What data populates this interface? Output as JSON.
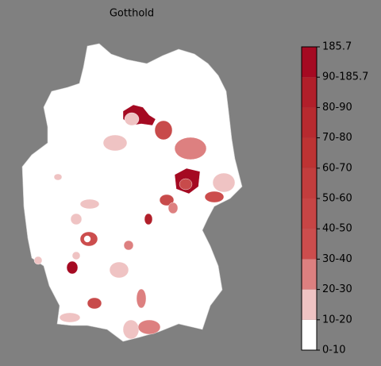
{
  "title": "Gotthold",
  "colorbar": {
    "labels": [
      "0-10",
      "10-20",
      "20-30",
      "30-40",
      "40-50",
      "50-60",
      "60-70",
      "70-80",
      "80-90",
      "90-185.7",
      "185.7"
    ],
    "colors": [
      "#ffffff",
      "#efc3c3",
      "#dd8080",
      "#cc4d4d",
      "#c74545",
      "#c23d3d",
      "#bd3333",
      "#b72a2f",
      "#b11f2a",
      "#a50a22"
    ]
  }
}
